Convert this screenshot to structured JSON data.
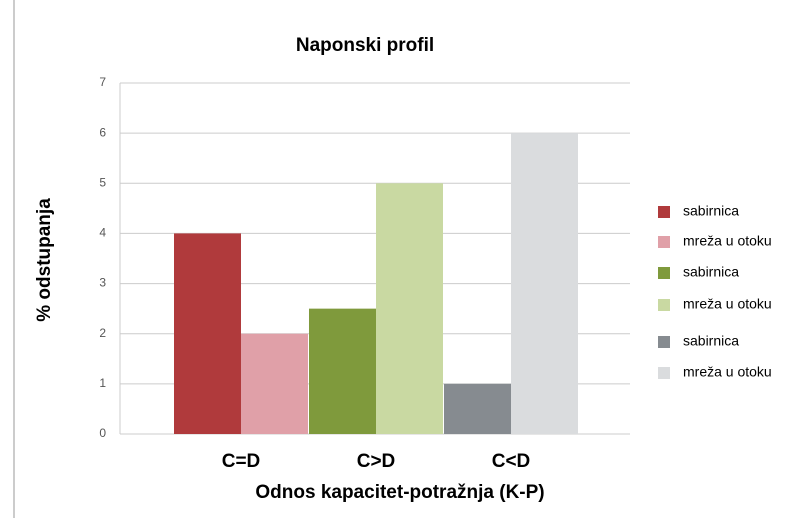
{
  "chart_data": {
    "type": "bar",
    "title": "Naponski profil",
    "x_label": "Odnos kapacitet-potražnja (K-P)",
    "y_label": "% odstupanja",
    "categories": [
      "C=D",
      "C>D",
      "C<D"
    ],
    "series": [
      {
        "name": "sabirnica",
        "color": "#b03a3c",
        "values": [
          4,
          null,
          null
        ]
      },
      {
        "name": "mreža u otoku",
        "color": "#e0a0a8",
        "values": [
          2,
          null,
          null
        ]
      },
      {
        "name": "sabirnica",
        "color": "#7f9a3c",
        "values": [
          null,
          2.5,
          null
        ]
      },
      {
        "name": "mreža u otoku",
        "color": "#c9d9a2",
        "values": [
          null,
          5,
          null
        ]
      },
      {
        "name": "sabirnica",
        "color": "#868b90",
        "values": [
          null,
          null,
          1
        ]
      },
      {
        "name": "mreža u otoku",
        "color": "#dadcde",
        "values": [
          null,
          null,
          6
        ]
      }
    ],
    "ylim": [
      0,
      7
    ],
    "yticks": [
      0,
      1,
      2,
      3,
      4,
      5,
      6,
      7
    ],
    "grid": true,
    "legend": "right"
  }
}
